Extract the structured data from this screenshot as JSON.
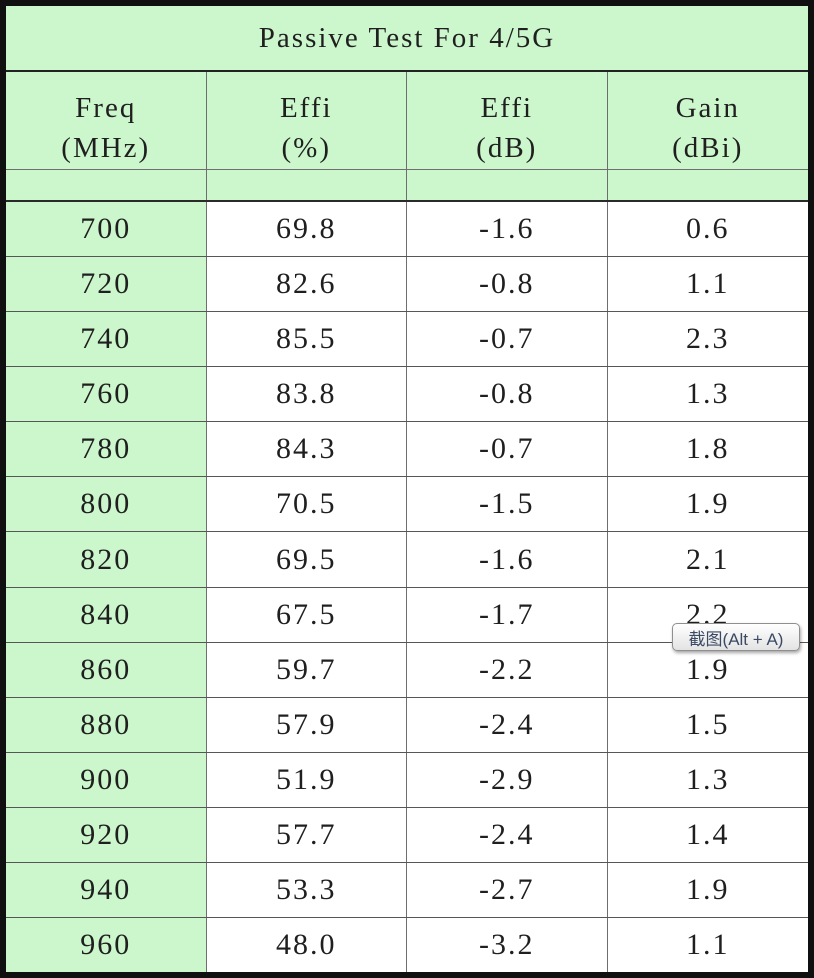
{
  "colors": {
    "green": "#ccf6cc",
    "table_border": "#101010",
    "grid_line": "#6e6e6e",
    "text": "#1f1f1f",
    "tooltip_text": "#3b4a63",
    "tooltip_border": "#8f8f8f"
  },
  "chart_data": {
    "type": "table",
    "title": "Passive Test For 4/5G",
    "column_headers": [
      {
        "label": "Freq",
        "unit": "(MHz)"
      },
      {
        "label": "Effi",
        "unit": "(%)"
      },
      {
        "label": "Effi",
        "unit": "(dB)"
      },
      {
        "label": "Gain",
        "unit": "(dBi)"
      }
    ],
    "rows": [
      [
        "700",
        "69.8",
        "-1.6",
        "0.6"
      ],
      [
        "720",
        "82.6",
        "-0.8",
        "1.1"
      ],
      [
        "740",
        "85.5",
        "-0.7",
        "2.3"
      ],
      [
        "760",
        "83.8",
        "-0.8",
        "1.3"
      ],
      [
        "780",
        "84.3",
        "-0.7",
        "1.8"
      ],
      [
        "800",
        "70.5",
        "-1.5",
        "1.9"
      ],
      [
        "820",
        "69.5",
        "-1.6",
        "2.1"
      ],
      [
        "840",
        "67.5",
        "-1.7",
        "2.2"
      ],
      [
        "860",
        "59.7",
        "-2.2",
        "1.9"
      ],
      [
        "880",
        "57.9",
        "-2.4",
        "1.5"
      ],
      [
        "900",
        "51.9",
        "-2.9",
        "1.3"
      ],
      [
        "920",
        "57.7",
        "-2.4",
        "1.4"
      ],
      [
        "940",
        "53.3",
        "-2.7",
        "1.9"
      ],
      [
        "960",
        "48.0",
        "-3.2",
        "1.1"
      ]
    ]
  },
  "overlay": {
    "tooltip_label": "截图(Alt + A)"
  }
}
